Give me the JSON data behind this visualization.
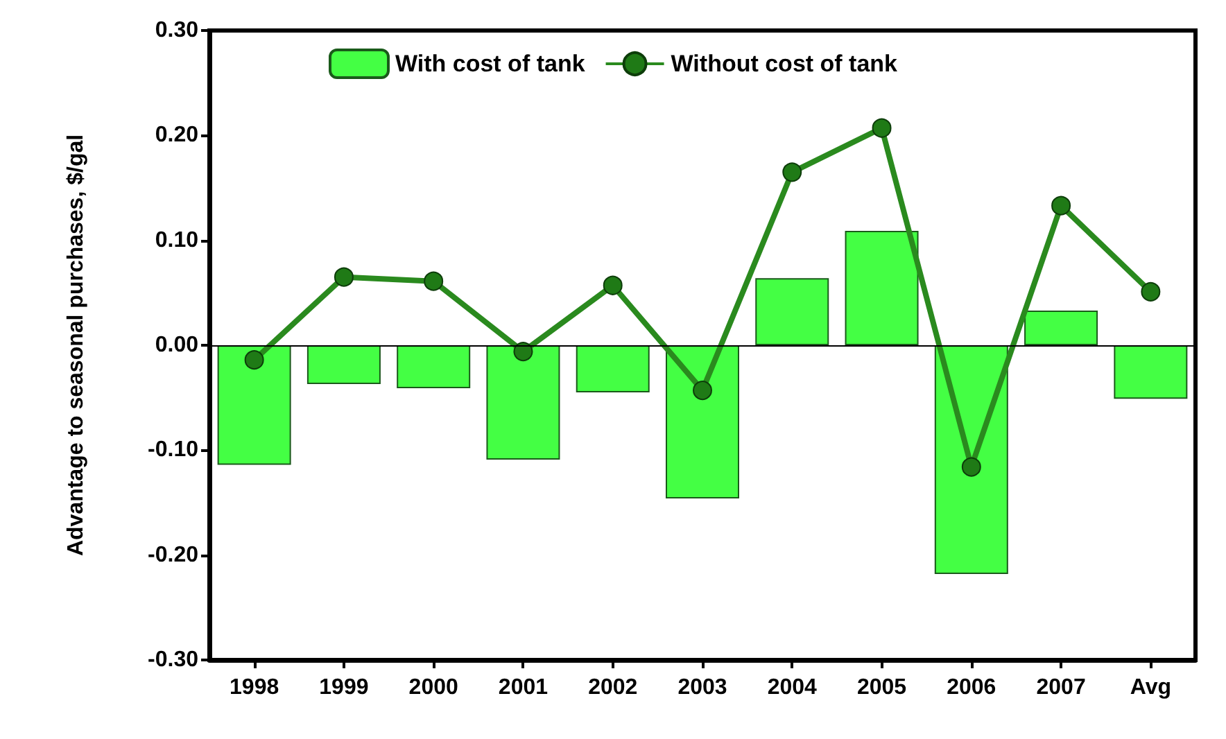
{
  "chart_data": {
    "type": "bar",
    "ylabel": "Advantage to seasonal purchases, $/gal",
    "categories": [
      "1998",
      "1999",
      "2000",
      "2001",
      "2002",
      "2003",
      "2004",
      "2005",
      "2006",
      "2007",
      "Avg"
    ],
    "series": [
      {
        "name": "With cost of tank",
        "color": "#44ff44",
        "values": [
          -0.114,
          -0.037,
          -0.041,
          -0.109,
          -0.045,
          -0.146,
          0.064,
          0.109,
          -0.218,
          0.033,
          -0.051
        ]
      },
      {
        "name": "Without cost of tank",
        "type": "line",
        "color": "#2a8a1e",
        "marker": "circle",
        "values": [
          -0.014,
          0.065,
          0.061,
          -0.006,
          0.057,
          -0.043,
          0.165,
          0.207,
          -0.116,
          0.133,
          0.051
        ]
      }
    ],
    "ylim": [
      -0.3,
      0.3
    ],
    "yticks": [
      {
        "value": -0.3,
        "label": "-0.30"
      },
      {
        "value": -0.2,
        "label": "-0.20"
      },
      {
        "value": -0.1,
        "label": "-0.10"
      },
      {
        "value": 0,
        "label": "0.00"
      },
      {
        "value": 0.1,
        "label": "0.10"
      },
      {
        "value": 0.2,
        "label": "0.20"
      },
      {
        "value": 0.3,
        "label": "0.30"
      }
    ],
    "ref_lines": [
      {
        "axis": "y",
        "value": 0
      }
    ],
    "legend": "top",
    "grid": false
  }
}
